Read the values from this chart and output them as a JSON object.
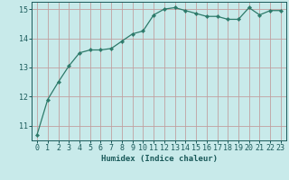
{
  "x": [
    0,
    1,
    2,
    3,
    4,
    5,
    6,
    7,
    8,
    9,
    10,
    11,
    12,
    13,
    14,
    15,
    16,
    17,
    18,
    19,
    20,
    21,
    22,
    23
  ],
  "y": [
    10.7,
    11.9,
    12.5,
    13.05,
    13.5,
    13.6,
    13.6,
    13.65,
    13.9,
    14.15,
    14.25,
    14.8,
    15.0,
    15.05,
    14.95,
    14.85,
    14.75,
    14.75,
    14.65,
    14.65,
    15.05,
    14.8,
    14.95,
    14.95
  ],
  "line_color": "#2d7a6a",
  "marker": "D",
  "marker_size": 2.2,
  "bg_color": "#c8eaea",
  "grid_color": "#c0a0a0",
  "xlabel": "Humidex (Indice chaleur)",
  "ylabel": "",
  "xlim": [
    -0.5,
    23.5
  ],
  "ylim": [
    10.5,
    15.25
  ],
  "yticks": [
    11,
    12,
    13,
    14,
    15
  ],
  "xticks": [
    0,
    1,
    2,
    3,
    4,
    5,
    6,
    7,
    8,
    9,
    10,
    11,
    12,
    13,
    14,
    15,
    16,
    17,
    18,
    19,
    20,
    21,
    22,
    23
  ],
  "tick_color": "#1a5a5a",
  "label_fontsize": 6.5,
  "tick_fontsize": 6.0,
  "ylabel_fontsize": 6.0
}
